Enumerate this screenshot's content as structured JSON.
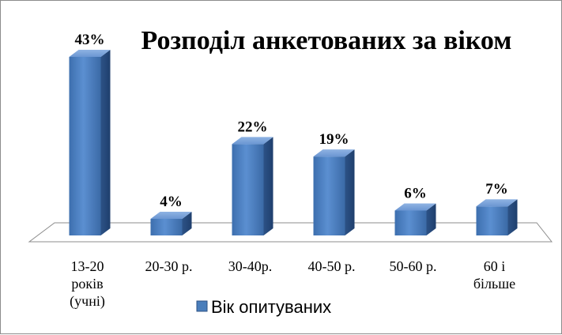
{
  "chart_data": {
    "type": "bar",
    "title": "Розподіл анкетованих за віком",
    "categories": [
      [
        "13-20",
        "років",
        "(учні)"
      ],
      [
        "20-30 р."
      ],
      [
        "30-40р."
      ],
      [
        "40-50 р."
      ],
      [
        "50-60 р."
      ],
      [
        "60 і",
        "більше"
      ]
    ],
    "series": [
      {
        "name": "Вік опитуваних",
        "values": [
          43,
          4,
          22,
          19,
          6,
          7
        ],
        "labels": [
          "43%",
          "4%",
          "22%",
          "19%",
          "6%",
          "7%"
        ],
        "color": "#4a7ebb"
      }
    ],
    "ylim": [
      0,
      43
    ],
    "grid": false,
    "legend": "bottom",
    "style": "3d-column"
  }
}
